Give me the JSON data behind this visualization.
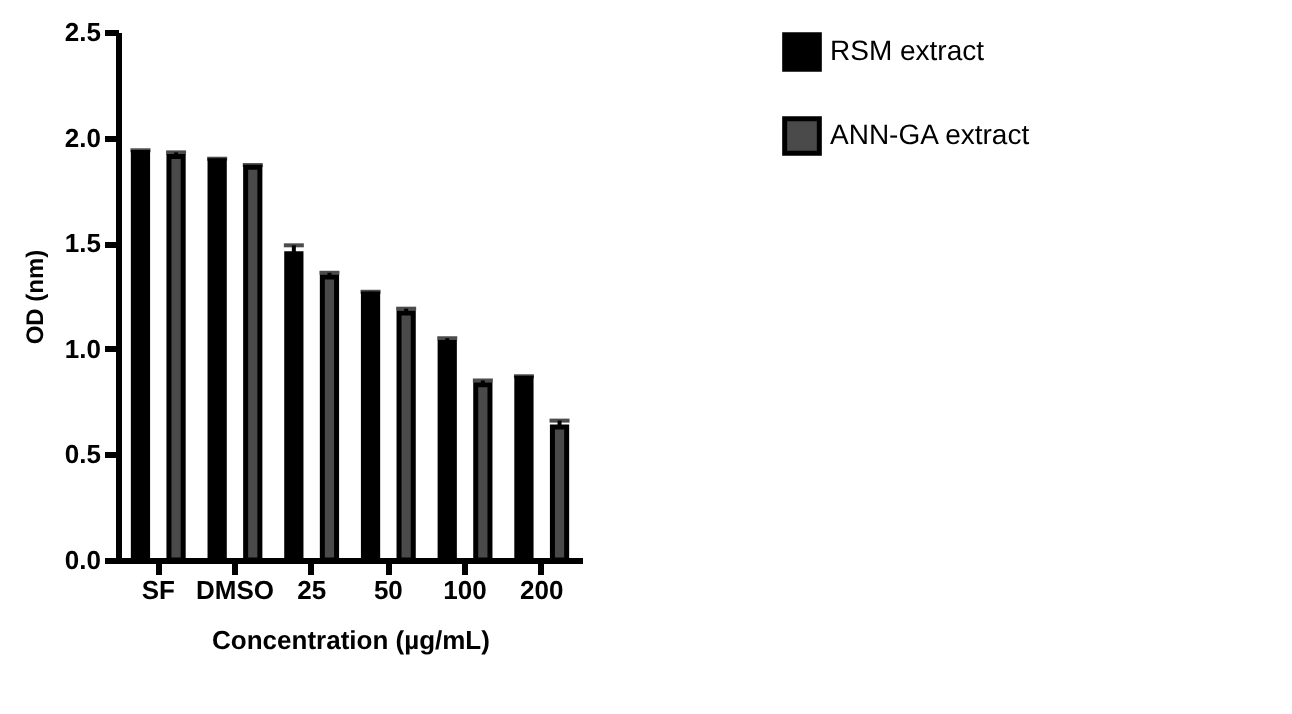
{
  "chart_data": {
    "type": "bar",
    "xlabel": "Concentration (µg/mL)",
    "ylabel": "OD (nm)",
    "categories": [
      "SF",
      "DMSO",
      "25",
      "50",
      "100",
      "200"
    ],
    "series": [
      {
        "name": "RSM extract",
        "color": "#000000",
        "values": [
          1.93,
          1.89,
          1.45,
          1.26,
          1.03,
          0.86
        ],
        "errors": [
          0.01,
          0.01,
          0.04,
          0.01,
          0.02,
          0.01
        ]
      },
      {
        "name": "ANN-GA extract",
        "color": "#4a4a4a",
        "values": [
          1.91,
          1.86,
          1.34,
          1.17,
          0.83,
          0.63
        ],
        "errors": [
          0.02,
          0.01,
          0.02,
          0.02,
          0.02,
          0.03
        ]
      }
    ],
    "ylim": [
      0,
      2.5
    ],
    "yticks": [
      {
        "value": 0,
        "label": "0.0"
      },
      0.5,
      {
        "value": 1,
        "label": "1.0"
      },
      1.5,
      {
        "value": 2,
        "label": "2.0"
      },
      2.5
    ],
    "grid": false,
    "legend": "top right"
  }
}
